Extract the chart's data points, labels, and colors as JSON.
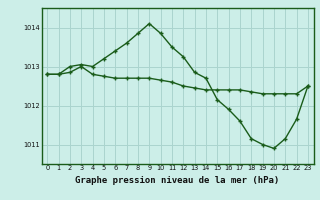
{
  "title": "Graphe pression niveau de la mer (hPa)",
  "background_color": "#cceee8",
  "grid_color": "#aad4ce",
  "line_color": "#1a5c1a",
  "border_color": "#1a5c1a",
  "xlim": [
    -0.5,
    23.5
  ],
  "ylim": [
    1010.5,
    1014.5
  ],
  "yticks": [
    1011,
    1012,
    1013,
    1014
  ],
  "xticks": [
    0,
    1,
    2,
    3,
    4,
    5,
    6,
    7,
    8,
    9,
    10,
    11,
    12,
    13,
    14,
    15,
    16,
    17,
    18,
    19,
    20,
    21,
    22,
    23
  ],
  "series1_x": [
    0,
    1,
    2,
    3,
    4,
    5,
    6,
    7,
    8,
    9,
    10,
    11,
    12,
    13,
    14,
    15,
    16,
    17,
    18,
    19,
    20,
    21,
    22,
    23
  ],
  "series1_y": [
    1012.8,
    1012.8,
    1012.85,
    1013.0,
    1012.8,
    1012.75,
    1012.7,
    1012.7,
    1012.7,
    1012.7,
    1012.65,
    1012.6,
    1012.5,
    1012.45,
    1012.4,
    1012.4,
    1012.4,
    1012.4,
    1012.35,
    1012.3,
    1012.3,
    1012.3,
    1012.3,
    1012.5
  ],
  "series2_x": [
    0,
    1,
    2,
    3,
    4,
    5,
    6,
    7,
    8,
    9,
    10,
    11,
    12,
    13,
    14,
    15,
    16,
    17,
    18,
    19,
    20,
    21,
    22,
    23
  ],
  "series2_y": [
    1012.8,
    1012.8,
    1013.0,
    1013.05,
    1013.0,
    1013.2,
    1013.4,
    1013.6,
    1013.85,
    1014.1,
    1013.85,
    1013.5,
    1013.25,
    1012.85,
    1012.7,
    1012.15,
    1011.9,
    1011.6,
    1011.15,
    1011.0,
    1010.9,
    1011.15,
    1011.65,
    1012.5
  ],
  "marker": "+",
  "markersize": 3.5,
  "linewidth": 1.0,
  "tick_fontsize": 4.8,
  "label_fontsize": 6.5,
  "label_fontweight": "bold"
}
